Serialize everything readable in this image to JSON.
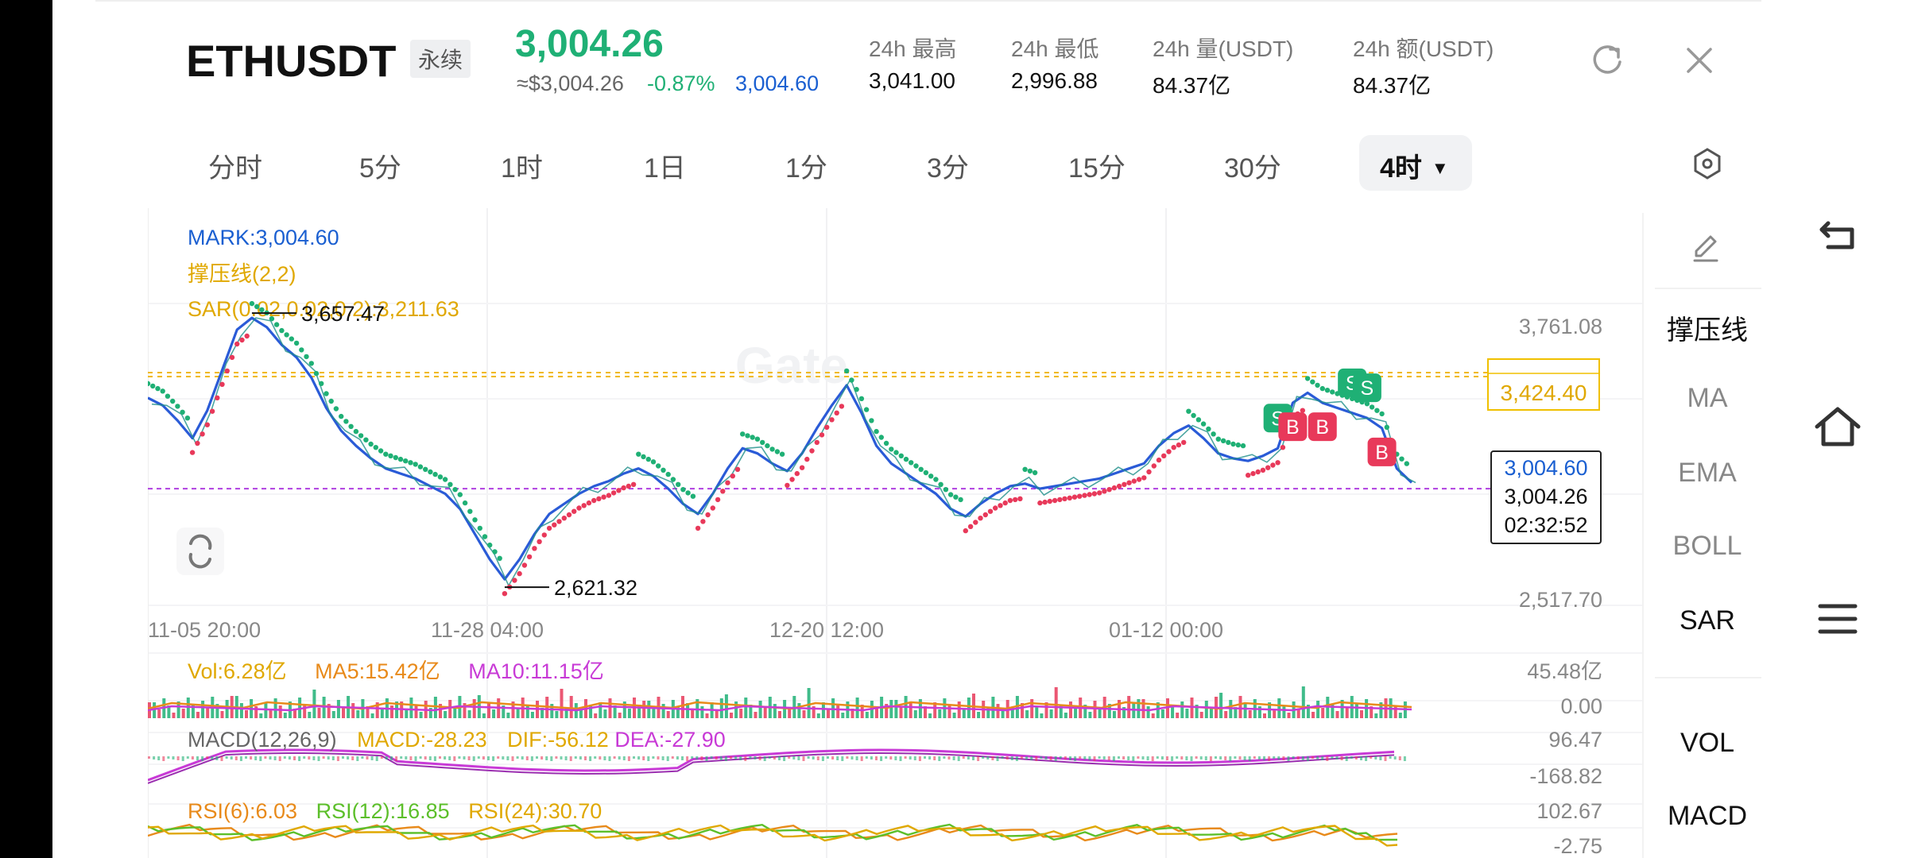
{
  "header": {
    "symbol": "ETHUSDT",
    "contract_type": "永续",
    "last_price": "3,004.26",
    "approx_value": "≈$3,004.26",
    "change_pct": "-0.87%",
    "mark_price": "3,004.60",
    "stats": [
      {
        "label": "24h  最高",
        "value": "3,041.00"
      },
      {
        "label": "24h  最低",
        "value": "2,996.88"
      },
      {
        "label": "24h  量(USDT)",
        "value": "84.37亿"
      },
      {
        "label": "24h  额(USDT)",
        "value": "84.37亿"
      }
    ]
  },
  "timeframes": [
    "分时",
    "5分",
    "1时",
    "1日",
    "1分",
    "3分",
    "15分",
    "30分"
  ],
  "active_timeframe": "4时",
  "side_panel": {
    "edit_icon": "pencil-icon",
    "main_indicators": [
      "撑压线",
      "MA",
      "EMA",
      "BOLL",
      "SAR"
    ],
    "sub_indicators": [
      "VOL",
      "MACD"
    ],
    "active": [
      "撑压线",
      "SAR",
      "VOL",
      "MACD"
    ]
  },
  "colors": {
    "up": "#1fb075",
    "down": "#e8395a",
    "mark": "#1a5fd1",
    "support_resistance": "#f0b90b",
    "purple": "#b040e0",
    "price_line": "#2a5bd7"
  },
  "chart_data": {
    "type": "line",
    "title": "",
    "indicator_legend": {
      "mark": "MARK:3,004.60",
      "sr": "撑压线(2,2)",
      "sar": "SAR(0.02,0.02,0.2):3,211.63"
    },
    "y_axis_labels": [
      "3,761.08",
      "2,517.70"
    ],
    "ylim": [
      2517.7,
      3761.08
    ],
    "x_tick_labels": [
      "11-05 20:00",
      "11-28 04:00",
      "12-20 12:00",
      "01-12 00:00"
    ],
    "x_tick_index": [
      0,
      134,
      268,
      402
    ],
    "high_marker": "3,657.47",
    "low_marker": "2,621.32",
    "resistance_level": "3,424.40",
    "resistance_level_value": 3424.4,
    "resistance_level_2": 3440.0,
    "last_price_label": "3,004.26",
    "mark_price_label": "3,004.60",
    "countdown": "02:32:52",
    "series": [
      {
        "name": "MARK",
        "values": [
          3340,
          3310,
          3250,
          3180,
          3290,
          3450,
          3610,
          3657,
          3620,
          3550,
          3500,
          3420,
          3300,
          3210,
          3150,
          3100,
          3060,
          3040,
          3020,
          2990,
          2960,
          2900,
          2800,
          2700,
          2621,
          2700,
          2800,
          2880,
          2920,
          2960,
          2990,
          3010,
          3040,
          3060,
          3030,
          2980,
          2920,
          2880,
          2960,
          3060,
          3140,
          3120,
          3080,
          3050,
          3120,
          3220,
          3310,
          3390,
          3280,
          3150,
          3080,
          3040,
          3000,
          2960,
          2900,
          2870,
          2920,
          2960,
          2990,
          3000,
          2980,
          2990,
          3000,
          3010,
          3020,
          3040,
          3060,
          3080,
          3150,
          3200,
          3230,
          3180,
          3120,
          3100,
          3090,
          3110,
          3140,
          3320,
          3360,
          3320,
          3300,
          3280,
          3260,
          3220,
          3060,
          3004
        ]
      }
    ],
    "sar_up_dots": "green dots above price in downtrends",
    "sar_down_dots": "red dots below price in uptrends",
    "signals": [
      {
        "label": "S",
        "index": 76
      },
      {
        "label": "S",
        "index": 81
      },
      {
        "label": "S",
        "index": 82
      },
      {
        "label": "B",
        "index": 77
      },
      {
        "label": "B",
        "index": 79
      },
      {
        "label": "B",
        "index": 83
      }
    ],
    "volume": {
      "legend": {
        "vol": "Vol:6.28亿",
        "ma5": "MA5:15.42亿",
        "ma10": "MA10:11.15亿"
      },
      "y_labels": [
        "45.48亿",
        "0.00"
      ],
      "ylim": [
        0,
        45.48
      ]
    },
    "macd": {
      "legend": {
        "macd": "MACD(12,26,9)",
        "macd_v": "MACD:-28.23",
        "dif": "DIF:-56.12",
        "dea": "DEA:-27.90"
      },
      "y_labels": [
        "96.47",
        "-168.82"
      ],
      "ylim": [
        -168.82,
        96.47
      ]
    },
    "rsi": {
      "legend": {
        "rsi6": "RSI(6):6.03",
        "rsi12": "RSI(12):16.85",
        "rsi24": "RSI(24):30.70"
      },
      "y_labels": [
        "102.67",
        "-2.75"
      ],
      "ylim": [
        -2.75,
        102.67
      ]
    }
  }
}
